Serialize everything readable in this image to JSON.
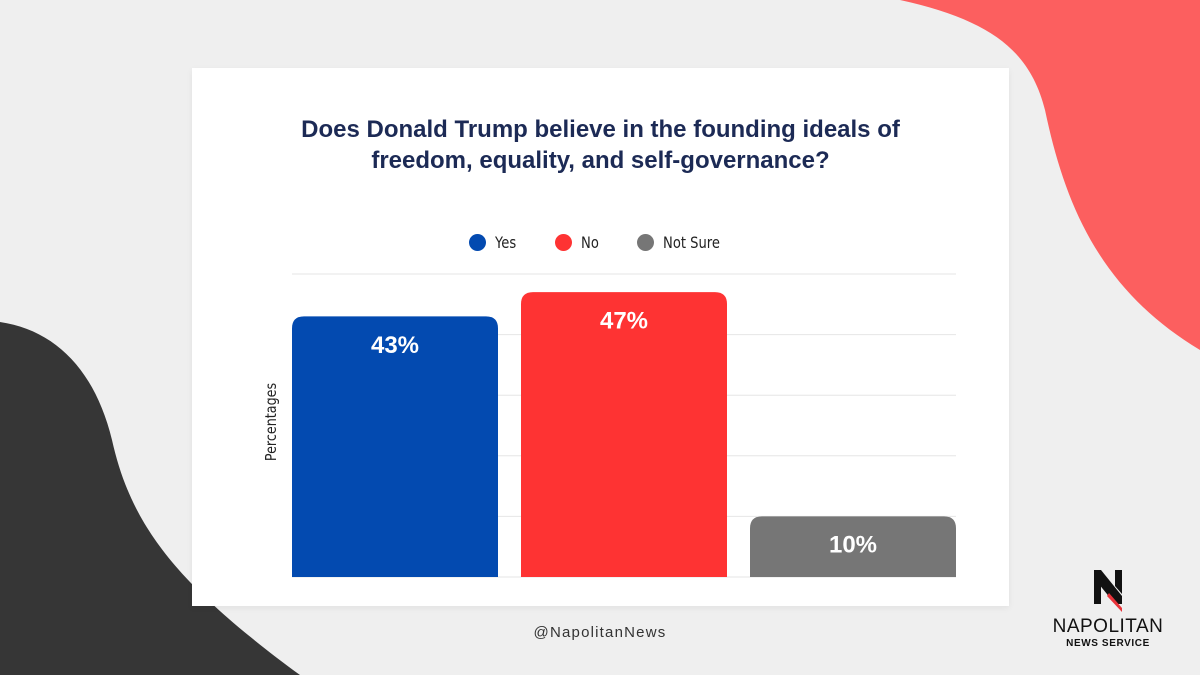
{
  "colors": {
    "background": "#efefef",
    "card": "#ffffff",
    "title": "#1c2a55",
    "accent_coral": "#fc5f5f",
    "accent_dark": "#363636",
    "grid": "#e6e6e6",
    "label": "#ffffff"
  },
  "footer": {
    "handle": "@NapolitanNews"
  },
  "logo": {
    "icon": "napolitan-n-icon",
    "name": "NAPOLITAN",
    "subtitle": "NEWS SERVICE"
  },
  "chart_data": {
    "type": "bar",
    "title": "Does Donald Trump believe in the founding ideals of freedom, equality, and self-governance?",
    "ylabel": "Percentages",
    "ylim": [
      0,
      50
    ],
    "grid": true,
    "legend_position": "top-center",
    "categories": [
      "Yes",
      "No",
      "Not Sure"
    ],
    "values": [
      43,
      47,
      10
    ],
    "value_labels": [
      "43%",
      "47%",
      "10%"
    ],
    "colors": [
      "#034ab0",
      "#fe3333",
      "#767676"
    ],
    "legend": [
      {
        "label": "Yes",
        "color": "#034ab0"
      },
      {
        "label": "No",
        "color": "#fe3333"
      },
      {
        "label": "Not Sure",
        "color": "#767676"
      }
    ]
  }
}
